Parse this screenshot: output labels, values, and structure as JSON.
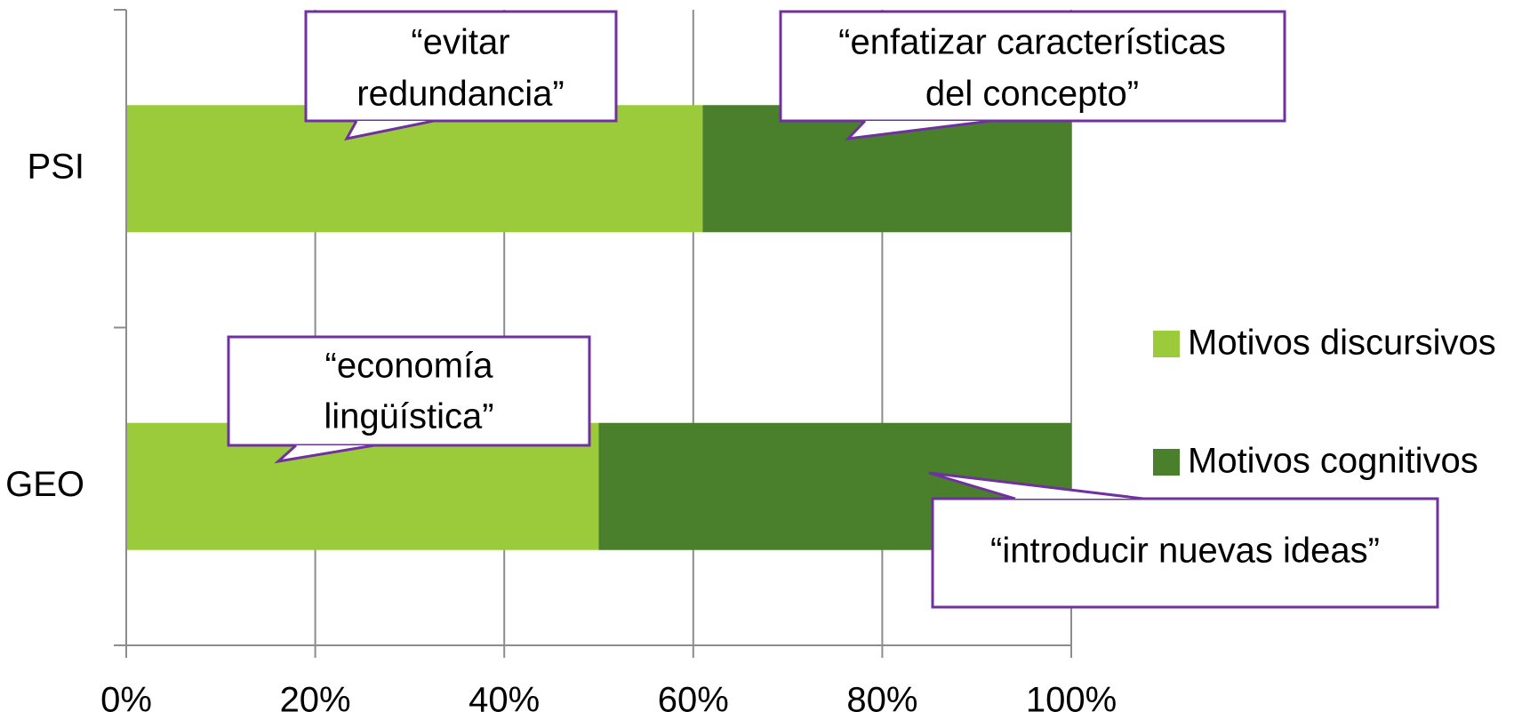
{
  "chart_data": {
    "type": "stacked_barh",
    "categories": [
      "PSI",
      "GEO"
    ],
    "series": [
      {
        "name": "Motivos discursivos",
        "color": "#9bcb3b",
        "values": [
          61,
          50
        ]
      },
      {
        "name": "Motivos cognitivos",
        "color": "#4a7f2c",
        "values": [
          39,
          50
        ]
      }
    ],
    "xlim": [
      0,
      100
    ],
    "xticks": [
      {
        "value": 0,
        "label": "0%"
      },
      {
        "value": 20,
        "label": "20%"
      },
      {
        "value": 40,
        "label": "40%"
      },
      {
        "value": 60,
        "label": "60%"
      },
      {
        "value": 80,
        "label": "80%"
      },
      {
        "value": 100,
        "label": "100%"
      }
    ],
    "grid": true,
    "legend": "right",
    "annotations": [
      {
        "lines": [
          "“evitar",
          "redundancia”"
        ]
      },
      {
        "lines": [
          "“enfatizar características",
          "del concepto”"
        ]
      },
      {
        "lines": [
          "“economía",
          "lingüística”"
        ]
      },
      {
        "lines": [
          "“introducir nuevas ideas”"
        ]
      }
    ]
  }
}
